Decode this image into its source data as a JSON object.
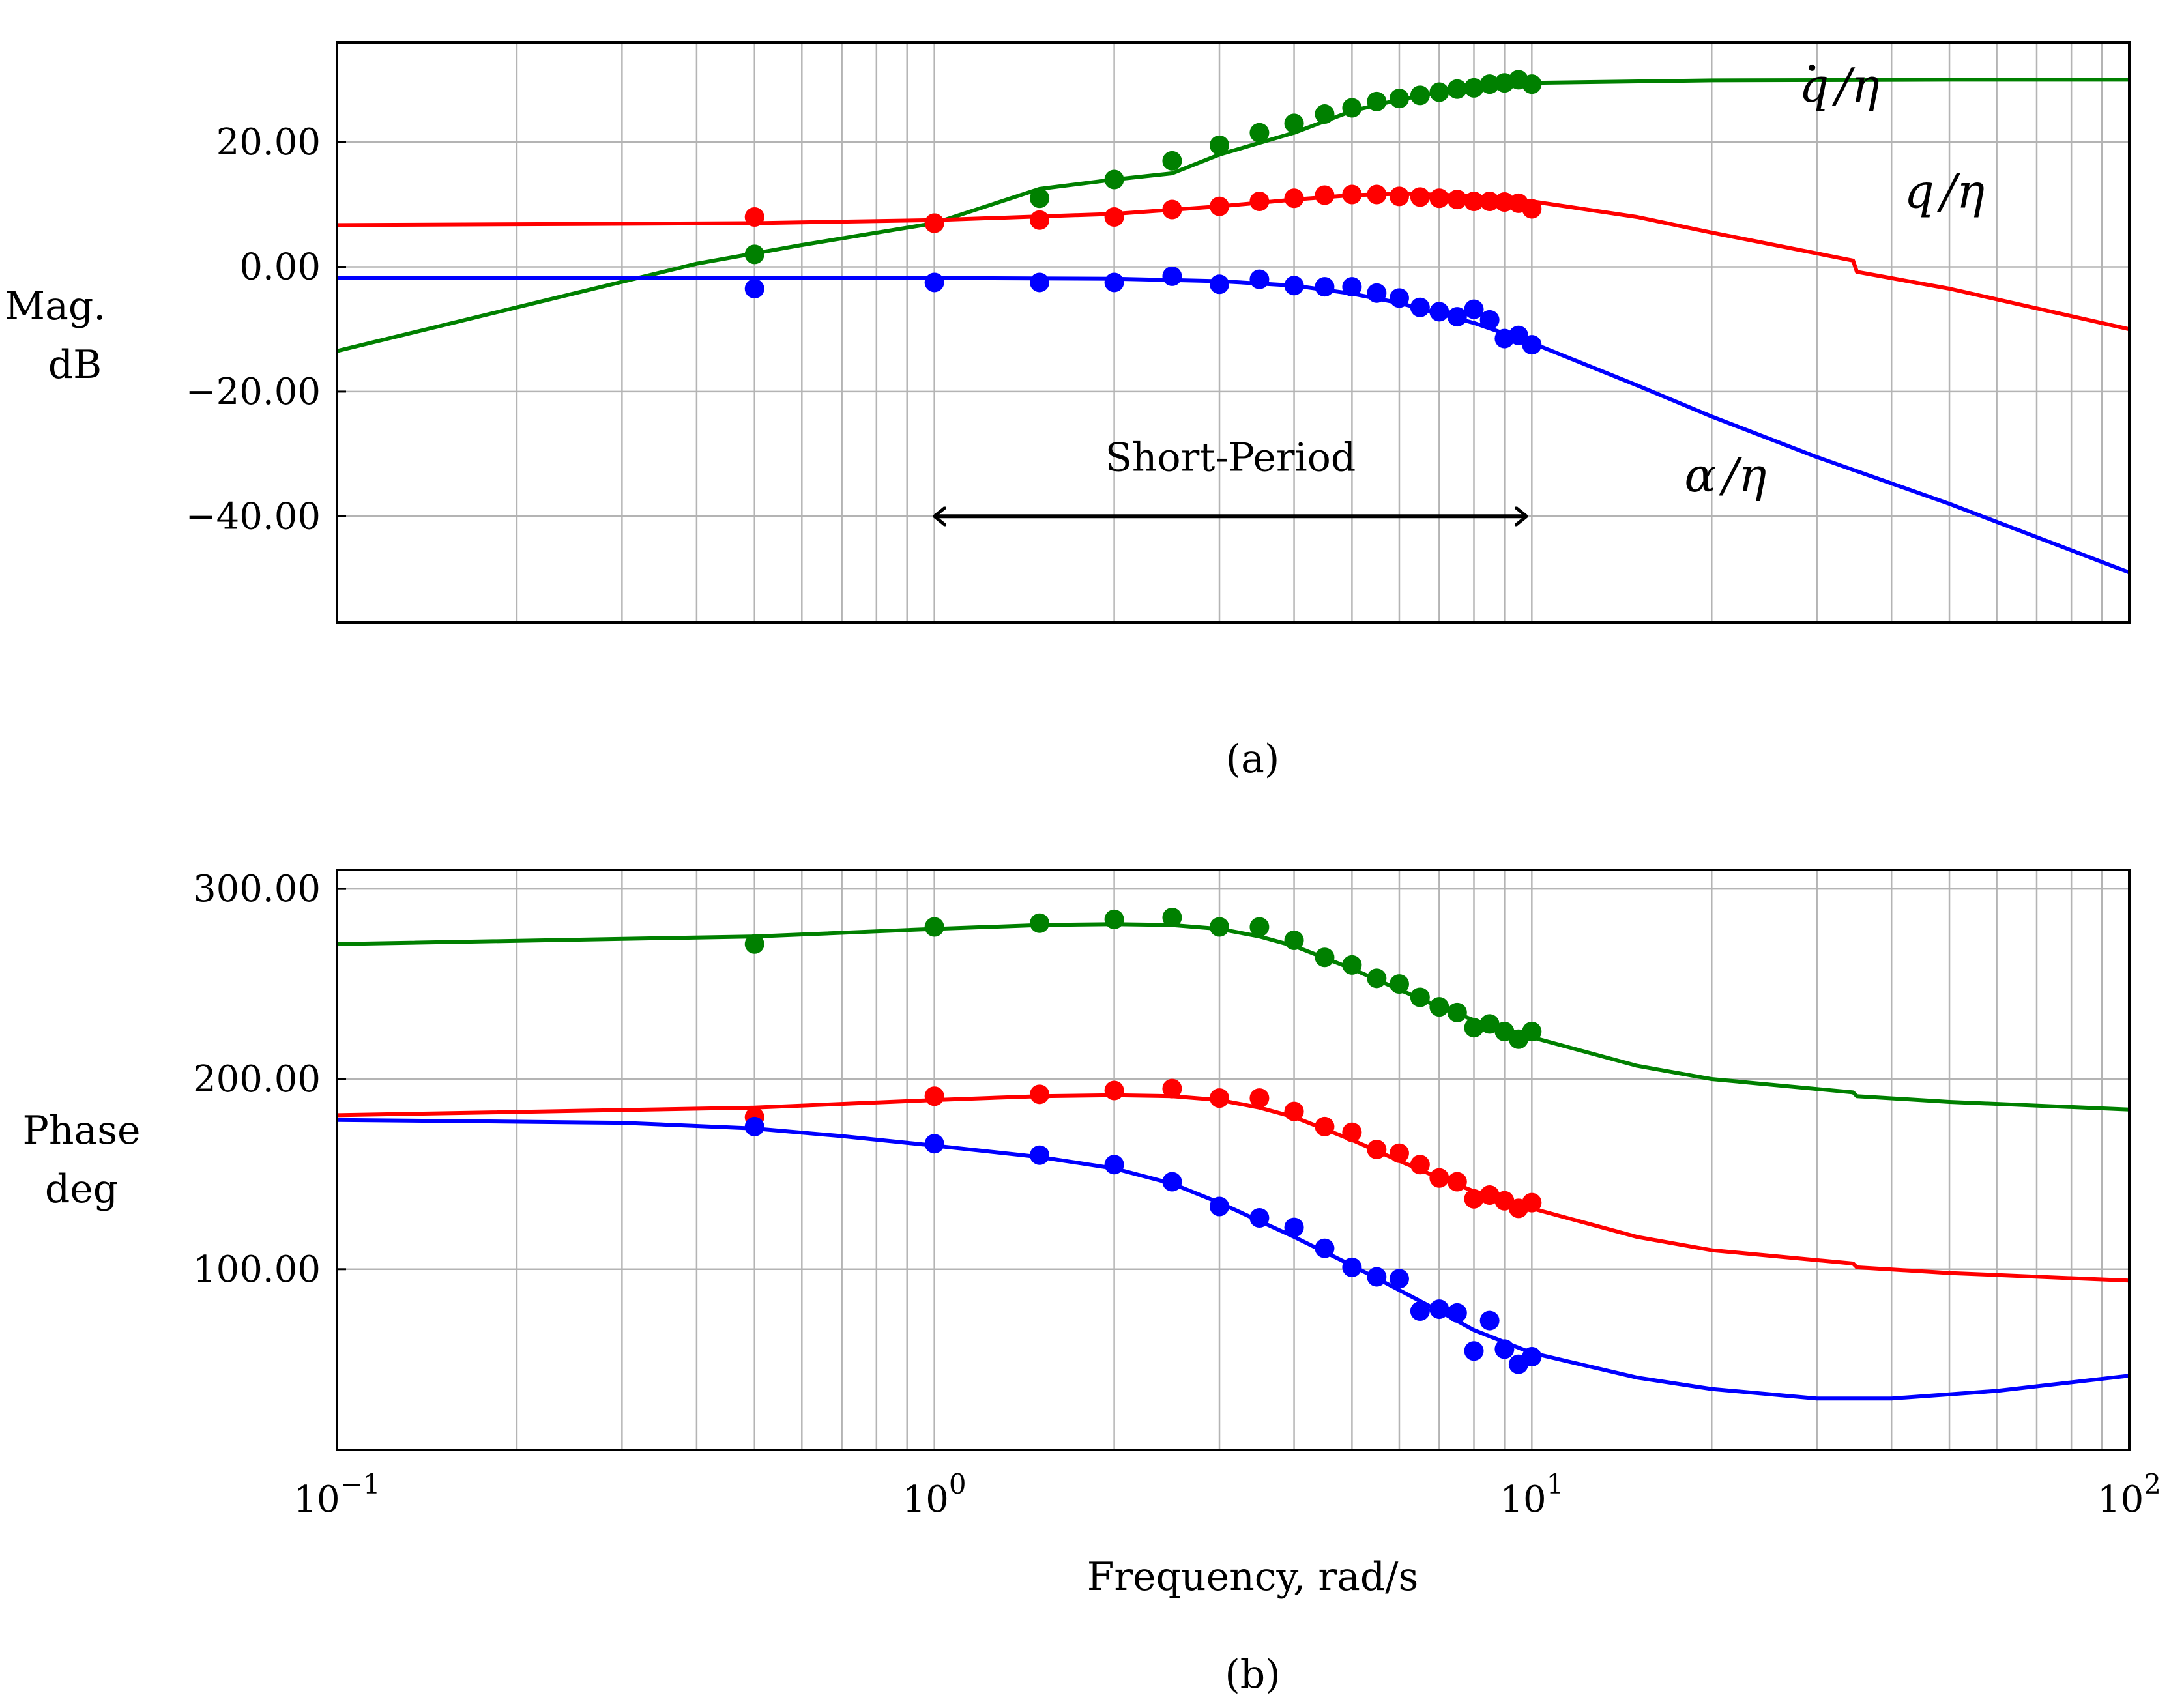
{
  "chart_data": [
    {
      "type": "line",
      "panel": "a",
      "caption": "(a)",
      "ylabel_line1": "Mag.",
      "ylabel_line2": "dB",
      "xscale": "log",
      "xlim": [
        0.1,
        100
      ],
      "ylim": [
        -57,
        36
      ],
      "yticks": [
        20,
        0,
        -20,
        -40
      ],
      "ytick_labels": [
        "20.00",
        "0.00",
        "−20.00",
        "−40.00"
      ],
      "xticks_labels_shown": false,
      "grid": true,
      "annotations": [
        {
          "type": "double-arrow",
          "x_from": 1,
          "x_to": 9.8,
          "y": -40,
          "label": "Short-Period"
        }
      ],
      "series": [
        {
          "name": "q̇/η",
          "label_base": "q",
          "label_rest": "/η",
          "color": "#008000",
          "label_pos": [
            28,
            26.5
          ],
          "line": {
            "x": [
              0.1,
              0.2,
              0.4,
              0.6,
              1.0,
              1.5,
              2.0,
              2.5,
              3.0,
              4.0,
              5.0,
              6.0,
              7.0,
              8.0,
              10,
              20,
              50,
              100
            ],
            "y": [
              -13.5,
              -6.5,
              0.5,
              3.5,
              7.0,
              12.5,
              14.0,
              15.0,
              18.0,
              21.5,
              25.0,
              26.8,
              28.0,
              29.0,
              29.5,
              29.9,
              30.0,
              30.0
            ]
          },
          "points": {
            "x": [
              0.5,
              1.0,
              1.5,
              2.0,
              2.5,
              3.0,
              3.5,
              4.0,
              4.5,
              5.0,
              5.5,
              6.0,
              6.5,
              7.0,
              7.5,
              8.0,
              8.5,
              9.0,
              9.5,
              10.0
            ],
            "y": [
              2.0,
              7.0,
              11.0,
              14.0,
              17.0,
              19.5,
              21.5,
              23.0,
              24.5,
              25.5,
              26.5,
              27.0,
              27.5,
              28.0,
              28.5,
              28.7,
              29.3,
              29.5,
              30.0,
              29.3
            ]
          }
        },
        {
          "name": "q/η",
          "label_base": "q",
          "label_rest": "/η",
          "color": "#ff0000",
          "label_pos": [
            42,
            9.5
          ],
          "line": {
            "x": [
              0.1,
              0.5,
              1.0,
              2.0,
              3.0,
              4.0,
              5.0,
              6.0,
              7.0,
              8.0,
              10.0,
              15.0,
              20.0,
              34.5,
              35.0,
              50.0,
              100
            ],
            "y": [
              6.7,
              7.0,
              7.5,
              8.5,
              9.7,
              10.8,
              11.5,
              11.7,
              11.6,
              11.3,
              10.5,
              8.0,
              5.5,
              1.0,
              -0.8,
              -3.5,
              -10.0
            ]
          },
          "points": {
            "x": [
              0.5,
              1.0,
              1.5,
              2.0,
              2.5,
              3.0,
              3.5,
              4.0,
              4.5,
              5.0,
              5.5,
              6.0,
              6.5,
              7.0,
              7.5,
              8.0,
              8.5,
              9.0,
              9.5,
              10.0
            ],
            "y": [
              8.0,
              7.0,
              7.5,
              8.0,
              9.2,
              9.7,
              10.5,
              11.0,
              11.5,
              11.6,
              11.6,
              11.3,
              11.2,
              11.0,
              10.8,
              10.5,
              10.5,
              10.4,
              10.2,
              9.3
            ]
          }
        },
        {
          "name": "α/η",
          "label_base": "α",
          "label_rest": "/η",
          "color": "#0000ff",
          "label_pos": [
            18,
            -36
          ],
          "line": {
            "x": [
              0.1,
              1.0,
              2.0,
              3.0,
              4.0,
              5.0,
              6.0,
              7.0,
              8.0,
              10.0,
              15.0,
              20.0,
              30.0,
              50.0,
              100
            ],
            "y": [
              -1.8,
              -1.8,
              -1.9,
              -2.3,
              -3.0,
              -4.3,
              -5.8,
              -7.5,
              -9.0,
              -12.2,
              -19.0,
              -24.0,
              -30.5,
              -38.0,
              -49.0
            ]
          },
          "points": {
            "x": [
              0.5,
              1.0,
              1.5,
              2.0,
              2.5,
              3.0,
              3.5,
              4.0,
              4.5,
              5.0,
              5.5,
              6.0,
              6.5,
              7.0,
              7.5,
              8.0,
              8.5,
              9.0,
              9.5,
              10.0
            ],
            "y": [
              -3.5,
              -2.5,
              -2.5,
              -2.5,
              -1.5,
              -2.8,
              -2.0,
              -3.0,
              -3.2,
              -3.2,
              -4.2,
              -5.0,
              -6.5,
              -7.2,
              -8.0,
              -6.8,
              -8.5,
              -11.5,
              -11.0,
              -12.5
            ]
          }
        }
      ]
    },
    {
      "type": "line",
      "panel": "b",
      "caption": "(b)",
      "ylabel_line1": "Phase",
      "ylabel_line2": "deg",
      "xlabel": "Frequency, rad/s",
      "xscale": "log",
      "xlim": [
        0.1,
        100
      ],
      "ylim": [
        5,
        310
      ],
      "yticks": [
        300,
        200,
        100
      ],
      "ytick_labels": [
        "300.00",
        "200.00",
        "100.00"
      ],
      "xtick_values": [
        0.1,
        1,
        10,
        100
      ],
      "xtick_exponents": [
        "−1",
        "0",
        "1",
        "2"
      ],
      "xtick_base": "10",
      "grid": true,
      "series": [
        {
          "name": "q̇/η",
          "color": "#008000",
          "line": {
            "x": [
              0.1,
              0.5,
              1.0,
              1.5,
              2.0,
              2.5,
              3.0,
              3.5,
              4.0,
              5.0,
              6.0,
              7.0,
              8.0,
              10.0,
              15.0,
              20.0,
              34.5,
              35.0,
              50.0,
              100
            ],
            "y": [
              271,
              275,
              279,
              281,
              281.5,
              281,
              279,
              275,
              270,
              258,
              247,
              238,
              231,
              222,
              207,
              200,
              193,
              191,
              188,
              184
            ]
          },
          "points": {
            "x": [
              0.5,
              1.0,
              1.5,
              2.0,
              2.5,
              3.0,
              3.5,
              4.0,
              4.5,
              5.0,
              5.5,
              6.0,
              6.5,
              7.0,
              7.5,
              8.0,
              8.5,
              9.0,
              9.5,
              10.0
            ],
            "y": [
              271,
              280,
              282,
              284,
              285,
              280,
              280,
              273,
              264,
              260,
              253,
              250,
              243,
              238,
              235,
              227,
              229,
              225,
              221,
              225
            ]
          }
        },
        {
          "name": "q/η",
          "color": "#ff0000",
          "line": {
            "x": [
              0.1,
              0.5,
              1.0,
              1.5,
              2.0,
              2.5,
              3.0,
              3.5,
              4.0,
              5.0,
              6.0,
              7.0,
              8.0,
              10.0,
              15.0,
              20.0,
              34.5,
              35.0,
              50.0,
              100
            ],
            "y": [
              181,
              185,
              189,
              191,
              191.5,
              191,
              189,
              185,
              180,
              168,
              157,
              148,
              141,
              132,
              117,
              110,
              103,
              101,
              98,
              94
            ]
          },
          "points": {
            "x": [
              0.5,
              1.0,
              1.5,
              2.0,
              2.5,
              3.0,
              3.5,
              4.0,
              4.5,
              5.0,
              5.5,
              6.0,
              6.5,
              7.0,
              7.5,
              8.0,
              8.5,
              9.0,
              9.5,
              10.0
            ],
            "y": [
              180,
              191,
              192,
              194,
              195,
              190,
              190,
              183,
              175,
              172,
              163,
              161,
              155,
              148,
              146,
              137,
              139,
              136,
              132,
              135
            ]
          }
        },
        {
          "name": "α/η",
          "color": "#0000ff",
          "line": {
            "x": [
              0.1,
              0.3,
              0.5,
              0.7,
              1.0,
              1.5,
              2.0,
              2.5,
              3.0,
              4.0,
              5.0,
              6.0,
              7.0,
              8.0,
              10.0,
              15.0,
              20.0,
              30.0,
              40.0,
              60.0,
              100
            ],
            "y": [
              178.5,
              177,
              174,
              170,
              165,
              159,
              153,
              145,
              135,
              117,
              102,
              89,
              78,
              68,
              56,
              43,
              37,
              32,
              32,
              36,
              44
            ]
          },
          "points": {
            "x": [
              0.5,
              1.0,
              1.5,
              2.0,
              2.5,
              3.0,
              3.5,
              4.0,
              4.5,
              5.0,
              5.5,
              6.0,
              6.5,
              7.0,
              7.5,
              8.0,
              8.5,
              9.0,
              9.5,
              10.0
            ],
            "y": [
              175,
              166,
              160,
              155,
              146,
              133,
              127,
              122,
              111,
              101,
              96,
              95,
              78,
              79,
              77,
              57,
              73,
              58,
              50,
              54
            ]
          }
        }
      ]
    }
  ]
}
